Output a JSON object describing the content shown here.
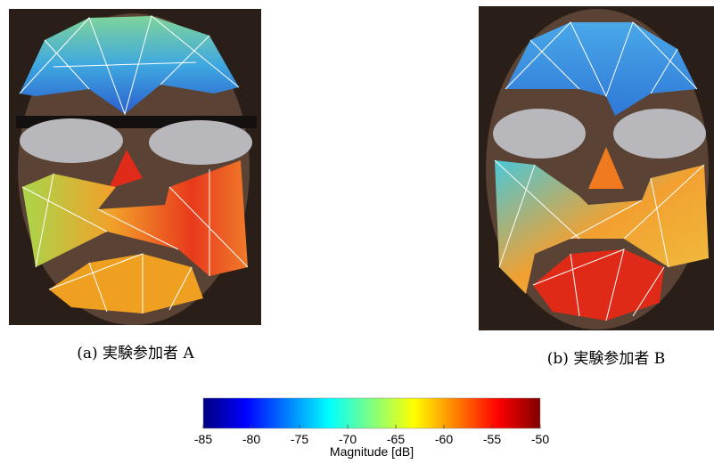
{
  "figures": [
    {
      "caption": "(a) 実験参加者 A"
    },
    {
      "caption": "(b) 実験参加者 B"
    }
  ],
  "colorbar": {
    "label": "Magnitude [dB]",
    "lim": [
      -85,
      -50
    ],
    "ticks": [
      -85,
      -80,
      -75,
      -70,
      -65,
      -60,
      -55,
      -50
    ]
  }
}
